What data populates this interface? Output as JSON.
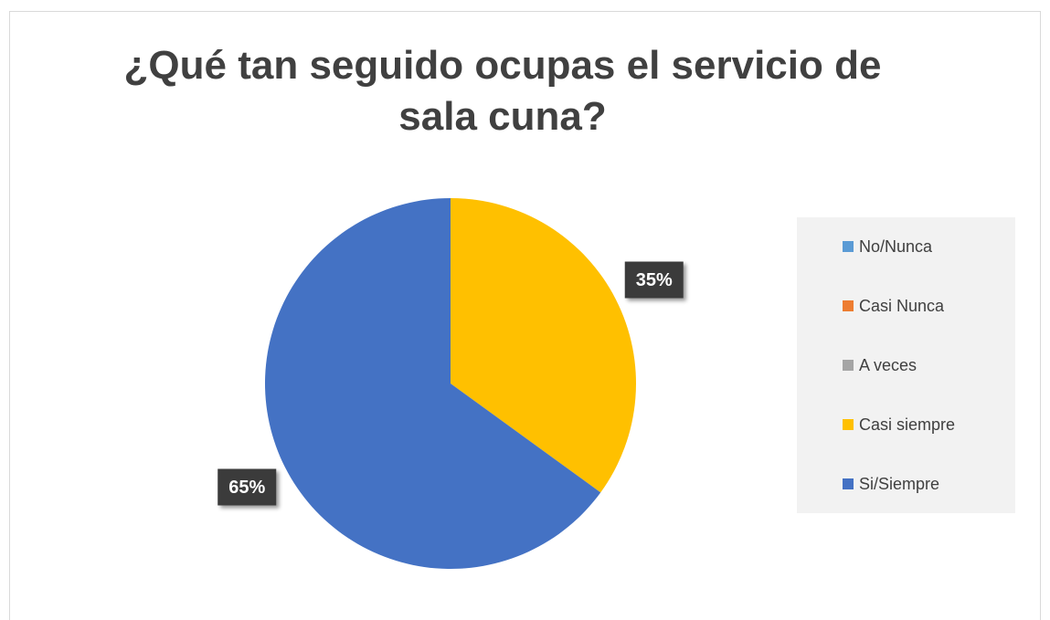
{
  "chart_data": {
    "type": "pie",
    "title": "¿Qué tan seguido ocupas el servicio de sala cuna?",
    "categories": [
      "No/Nunca",
      "Casi Nunca",
      "A veces",
      "Casi siempre",
      "Si/Siempre"
    ],
    "values": [
      0,
      0,
      0,
      35,
      65
    ],
    "value_labels": [
      null,
      null,
      null,
      "35%",
      "65%"
    ],
    "colors": [
      "#5b9bd5",
      "#ed7d31",
      "#a5a5a5",
      "#ffc000",
      "#4472c4"
    ],
    "legend": "right"
  }
}
